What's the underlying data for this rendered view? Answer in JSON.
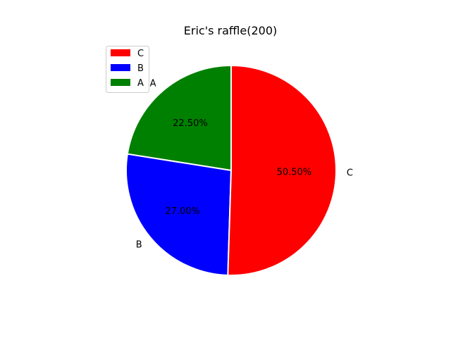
{
  "chart_data": {
    "type": "pie",
    "title": "Eric's raffle(200)",
    "categories": [
      "A",
      "B",
      "C"
    ],
    "values": [
      22.5,
      27.0,
      50.5
    ],
    "value_labels": [
      "22.50%",
      "27.00%",
      "50.50%"
    ],
    "colors": [
      "#008000",
      "#0000ff",
      "#ff0000"
    ],
    "legend": {
      "placement": "top-left",
      "entries": [
        "C",
        "B",
        "A"
      ]
    }
  }
}
